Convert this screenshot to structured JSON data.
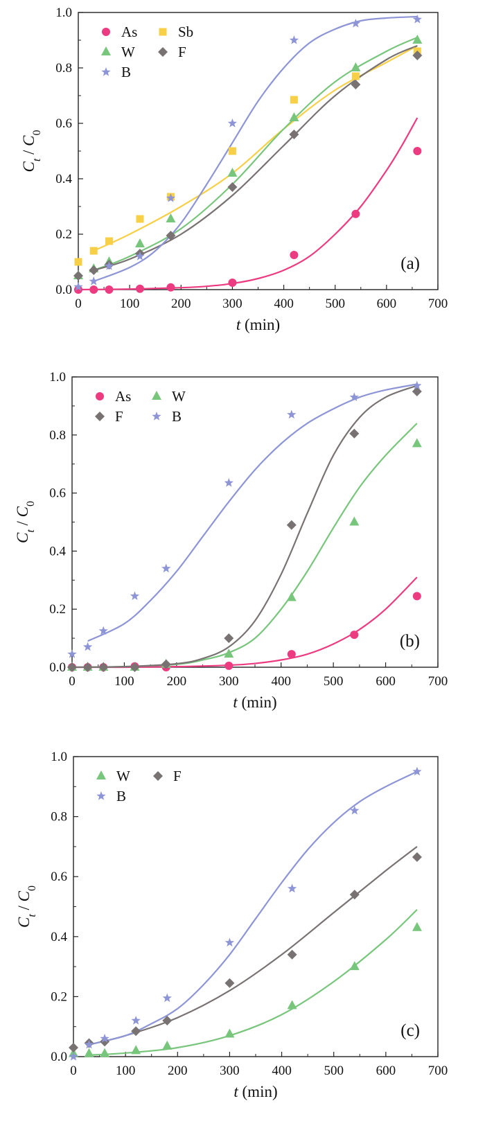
{
  "chart_data": [
    {
      "type": "scatter",
      "panel_label": "(a)",
      "xlabel": "t (min)",
      "ylabel": "Ct / C0",
      "xlim": [
        0,
        700
      ],
      "ylim": [
        0,
        1.0
      ],
      "x_ticks": [
        "0",
        "100",
        "200",
        "300",
        "400",
        "500",
        "600",
        "700"
      ],
      "y_ticks": [
        "0.0",
        "0.2",
        "0.4",
        "0.6",
        "0.8",
        "1.0"
      ],
      "legend_position": "top-left",
      "grid": false,
      "series": [
        {
          "name": "As",
          "marker": "circle",
          "color": "#ec3b80",
          "x": [
            0,
            30,
            60,
            120,
            180,
            300,
            420,
            540,
            660
          ],
          "y": [
            0.0,
            0.0,
            0.0,
            0.003,
            0.008,
            0.025,
            0.125,
            0.273,
            0.5
          ],
          "fit_x": [
            0,
            100,
            200,
            250,
            300,
            350,
            400,
            450,
            500,
            550,
            600,
            630,
            660
          ],
          "fit_y": [
            0.0,
            0.002,
            0.007,
            0.012,
            0.022,
            0.04,
            0.07,
            0.12,
            0.2,
            0.3,
            0.43,
            0.52,
            0.62
          ]
        },
        {
          "name": "Sb",
          "marker": "square",
          "color": "#f7d048",
          "x": [
            0,
            30,
            60,
            120,
            180,
            300,
            420,
            540,
            660
          ],
          "y": [
            0.1,
            0.14,
            0.175,
            0.255,
            0.335,
            0.5,
            0.685,
            0.77,
            0.86
          ],
          "fit_x": [
            30,
            100,
            200,
            300,
            400,
            500,
            600,
            660
          ],
          "fit_y": [
            0.14,
            0.2,
            0.3,
            0.42,
            0.58,
            0.72,
            0.82,
            0.88
          ]
        },
        {
          "name": "W",
          "marker": "triangle",
          "color": "#78c67c",
          "x": [
            0,
            30,
            60,
            120,
            180,
            300,
            420,
            540,
            660
          ],
          "y": [
            0.05,
            0.075,
            0.1,
            0.165,
            0.255,
            0.42,
            0.62,
            0.8,
            0.9
          ],
          "fit_x": [
            30,
            100,
            200,
            300,
            400,
            500,
            600,
            660
          ],
          "fit_y": [
            0.07,
            0.12,
            0.22,
            0.38,
            0.58,
            0.75,
            0.86,
            0.91
          ]
        },
        {
          "name": "F",
          "marker": "diamond",
          "color": "#797272",
          "x": [
            0,
            30,
            60,
            120,
            180,
            300,
            420,
            540,
            660
          ],
          "y": [
            0.05,
            0.07,
            0.09,
            0.13,
            0.195,
            0.37,
            0.56,
            0.74,
            0.845
          ],
          "fit_x": [
            30,
            100,
            200,
            300,
            400,
            500,
            600,
            660
          ],
          "fit_y": [
            0.07,
            0.11,
            0.2,
            0.34,
            0.52,
            0.7,
            0.83,
            0.88
          ]
        },
        {
          "name": "B",
          "marker": "star",
          "color": "#8d95d6",
          "x": [
            0,
            30,
            60,
            120,
            180,
            300,
            420,
            540,
            660
          ],
          "y": [
            0.01,
            0.03,
            0.085,
            0.12,
            0.33,
            0.6,
            0.9,
            0.96,
            0.975
          ],
          "fit_x": [
            30,
            100,
            150,
            200,
            250,
            300,
            350,
            400,
            450,
            500,
            550,
            600,
            660
          ],
          "fit_y": [
            0.03,
            0.08,
            0.14,
            0.24,
            0.38,
            0.53,
            0.68,
            0.8,
            0.89,
            0.94,
            0.97,
            0.98,
            0.985
          ]
        }
      ]
    },
    {
      "type": "scatter",
      "panel_label": "(b)",
      "xlabel": "t (min)",
      "ylabel": "Ct / C0",
      "xlim": [
        0,
        700
      ],
      "ylim": [
        0,
        1.0
      ],
      "x_ticks": [
        "0",
        "100",
        "200",
        "300",
        "400",
        "500",
        "600",
        "700"
      ],
      "y_ticks": [
        "0.0",
        "0.2",
        "0.4",
        "0.6",
        "0.8",
        "1.0"
      ],
      "legend_position": "top-left",
      "grid": false,
      "series": [
        {
          "name": "As",
          "marker": "circle",
          "color": "#ec3b80",
          "x": [
            0,
            30,
            60,
            120,
            180,
            300,
            420,
            540,
            660
          ],
          "y": [
            0.0,
            0.0,
            0.0,
            0.003,
            0.0,
            0.005,
            0.045,
            0.112,
            0.245
          ],
          "fit_x": [
            0,
            100,
            200,
            300,
            350,
            400,
            450,
            500,
            550,
            600,
            660
          ],
          "fit_y": [
            0.0,
            0.0,
            0.002,
            0.007,
            0.013,
            0.025,
            0.045,
            0.08,
            0.13,
            0.2,
            0.31
          ]
        },
        {
          "name": "W",
          "marker": "triangle",
          "color": "#78c67c",
          "x": [
            0,
            30,
            60,
            120,
            180,
            300,
            420,
            540,
            660
          ],
          "y": [
            0.0,
            0.0,
            0.0,
            0.0,
            0.01,
            0.045,
            0.24,
            0.5,
            0.77
          ],
          "fit_x": [
            0,
            100,
            200,
            250,
            300,
            350,
            400,
            450,
            500,
            550,
            600,
            660
          ],
          "fit_y": [
            0.0,
            0.002,
            0.01,
            0.025,
            0.05,
            0.1,
            0.2,
            0.33,
            0.48,
            0.62,
            0.73,
            0.84
          ]
        },
        {
          "name": "F",
          "marker": "diamond",
          "color": "#797272",
          "x": [
            0,
            30,
            60,
            120,
            180,
            300,
            420,
            540,
            660
          ],
          "y": [
            0.0,
            0.0,
            0.0,
            0.0,
            0.01,
            0.1,
            0.49,
            0.805,
            0.95
          ],
          "fit_x": [
            0,
            100,
            200,
            250,
            300,
            350,
            400,
            450,
            500,
            550,
            600,
            660
          ],
          "fit_y": [
            0.0,
            0.002,
            0.012,
            0.03,
            0.07,
            0.16,
            0.32,
            0.53,
            0.73,
            0.86,
            0.93,
            0.97
          ]
        },
        {
          "name": "B",
          "marker": "star",
          "color": "#8d95d6",
          "x": [
            0,
            30,
            60,
            120,
            180,
            300,
            420,
            540,
            660
          ],
          "y": [
            0.045,
            0.07,
            0.125,
            0.245,
            0.34,
            0.635,
            0.87,
            0.93,
            0.97
          ],
          "fit_x": [
            30,
            100,
            150,
            200,
            250,
            300,
            350,
            400,
            450,
            500,
            550,
            600,
            660
          ],
          "fit_y": [
            0.09,
            0.15,
            0.23,
            0.33,
            0.45,
            0.57,
            0.68,
            0.77,
            0.84,
            0.89,
            0.93,
            0.955,
            0.975
          ]
        }
      ]
    },
    {
      "type": "scatter",
      "panel_label": "(c)",
      "xlabel": "t (min)",
      "ylabel": "Ct / C0",
      "xlim": [
        0,
        700
      ],
      "ylim": [
        0,
        1.0
      ],
      "x_ticks": [
        "0",
        "100",
        "200",
        "300",
        "400",
        "500",
        "600",
        "700"
      ],
      "y_ticks": [
        "0.0",
        "0.2",
        "0.4",
        "0.6",
        "0.8",
        "1.0"
      ],
      "legend_position": "top-left",
      "grid": false,
      "series": [
        {
          "name": "W",
          "marker": "triangle",
          "color": "#78c67c",
          "x": [
            0,
            30,
            60,
            120,
            180,
            300,
            420,
            540,
            660
          ],
          "y": [
            0.01,
            0.01,
            0.01,
            0.02,
            0.035,
            0.075,
            0.17,
            0.3,
            0.43
          ],
          "fit_x": [
            30,
            100,
            200,
            300,
            400,
            500,
            600,
            660
          ],
          "fit_y": [
            0.005,
            0.012,
            0.03,
            0.07,
            0.14,
            0.25,
            0.39,
            0.49
          ]
        },
        {
          "name": "F",
          "marker": "diamond",
          "color": "#797272",
          "x": [
            0,
            30,
            60,
            120,
            180,
            300,
            420,
            540,
            660
          ],
          "y": [
            0.03,
            0.045,
            0.05,
            0.085,
            0.12,
            0.245,
            0.34,
            0.54,
            0.665
          ],
          "fit_x": [
            30,
            100,
            200,
            300,
            400,
            500,
            600,
            660
          ],
          "fit_y": [
            0.04,
            0.07,
            0.13,
            0.22,
            0.34,
            0.48,
            0.62,
            0.7
          ]
        },
        {
          "name": "B",
          "marker": "star",
          "color": "#8d95d6",
          "x": [
            0,
            30,
            60,
            120,
            180,
            300,
            420,
            540,
            660
          ],
          "y": [
            0.0,
            0.04,
            0.06,
            0.12,
            0.195,
            0.38,
            0.56,
            0.82,
            0.95
          ],
          "fit_x": [
            30,
            100,
            150,
            200,
            250,
            300,
            350,
            400,
            450,
            500,
            550,
            600,
            660
          ],
          "fit_y": [
            0.04,
            0.07,
            0.11,
            0.16,
            0.24,
            0.34,
            0.46,
            0.58,
            0.69,
            0.78,
            0.85,
            0.9,
            0.95
          ]
        }
      ]
    }
  ]
}
